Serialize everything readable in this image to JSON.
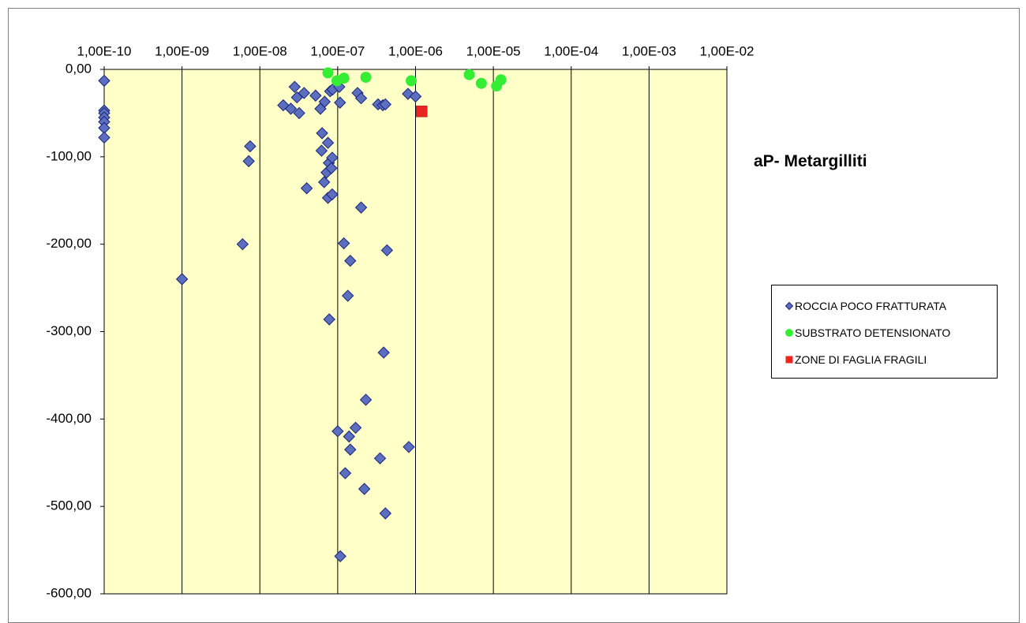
{
  "chart_data": {
    "type": "scatter",
    "title": "aP- Metargilliti",
    "xscale": "log",
    "x_axis_position": "top",
    "xlim": [
      1e-10,
      0.01
    ],
    "ylim": [
      -600,
      0
    ],
    "x_tick_labels": [
      "1,00E-10",
      "1,00E-09",
      "1,00E-08",
      "1,00E-07",
      "1,00E-06",
      "1,00E-05",
      "1,00E-04",
      "1,00E-03",
      "1,00E-02"
    ],
    "y_tick_labels": [
      "0,00",
      "-100,00",
      "-200,00",
      "-300,00",
      "-400,00",
      "-500,00",
      "-600,00"
    ],
    "y_ticks": [
      0,
      -100,
      -200,
      -300,
      -400,
      -500,
      -600
    ],
    "grid": "vertical",
    "legend_position": "right",
    "colors": {
      "plot_background": "#ffffc8",
      "grid": "#000000",
      "frame": "#7f7f7f"
    },
    "series": [
      {
        "name": "ROCCIA POCO FRATTURATA",
        "marker": "diamond",
        "color": "#5b6fbe",
        "edge": "#1a237e",
        "points": [
          [
            1e-10,
            -13
          ],
          [
            1e-10,
            -47
          ],
          [
            1e-10,
            -50
          ],
          [
            1e-10,
            -55
          ],
          [
            1e-10,
            -60
          ],
          [
            1e-10,
            -67
          ],
          [
            1e-10,
            -78
          ],
          [
            1e-09,
            -240
          ],
          [
            6e-09,
            -200
          ],
          [
            7.5e-09,
            -88
          ],
          [
            7.2e-09,
            -105
          ],
          [
            2e-08,
            -41
          ],
          [
            2.5e-08,
            -45
          ],
          [
            2.8e-08,
            -20
          ],
          [
            3e-08,
            -32
          ],
          [
            3.2e-08,
            -50
          ],
          [
            3.7e-08,
            -27
          ],
          [
            4e-08,
            -136
          ],
          [
            5.2e-08,
            -30
          ],
          [
            6e-08,
            -45
          ],
          [
            6.3e-08,
            -73
          ],
          [
            6.2e-08,
            -93
          ],
          [
            6.8e-08,
            -37
          ],
          [
            6.7e-08,
            -129
          ],
          [
            7.2e-08,
            -118
          ],
          [
            7.5e-08,
            -147
          ],
          [
            7.5e-08,
            -84
          ],
          [
            7.7e-08,
            -107
          ],
          [
            7.8e-08,
            -286
          ],
          [
            8e-08,
            -25
          ],
          [
            8.3e-08,
            -113
          ],
          [
            8.6e-08,
            -23
          ],
          [
            8.5e-08,
            -101
          ],
          [
            8.5e-08,
            -143
          ],
          [
            1e-07,
            -414
          ],
          [
            1.05e-07,
            -20
          ],
          [
            1.07e-07,
            -38
          ],
          [
            1.08e-07,
            -557
          ],
          [
            1.2e-07,
            -199
          ],
          [
            1.25e-07,
            -462
          ],
          [
            1.35e-07,
            -259
          ],
          [
            1.4e-07,
            -420
          ],
          [
            1.45e-07,
            -219
          ],
          [
            1.45e-07,
            -435
          ],
          [
            1.7e-07,
            -410
          ],
          [
            1.8e-07,
            -27
          ],
          [
            2e-07,
            -33
          ],
          [
            2e-07,
            -158
          ],
          [
            2.2e-07,
            -480
          ],
          [
            2.3e-07,
            -378
          ],
          [
            3.3e-07,
            -40
          ],
          [
            3.5e-07,
            -445
          ],
          [
            3.8e-07,
            -41
          ],
          [
            3.9e-07,
            -324
          ],
          [
            4.1e-07,
            -40
          ],
          [
            4.1e-07,
            -508
          ],
          [
            4.3e-07,
            -207
          ],
          [
            8e-07,
            -28
          ],
          [
            8.2e-07,
            -432
          ],
          [
            1e-06,
            -31
          ]
        ]
      },
      {
        "name": "SUBSTRATO DETENSIONATO",
        "marker": "circle",
        "color": "#33ee33",
        "points": [
          [
            7.5e-08,
            -4
          ],
          [
            9.8e-08,
            -13
          ],
          [
            1.2e-07,
            -10
          ],
          [
            2.3e-07,
            -9
          ],
          [
            8.8e-07,
            -13
          ],
          [
            4.9e-06,
            -6
          ],
          [
            7e-06,
            -16
          ],
          [
            1.1e-05,
            -19
          ],
          [
            1.25e-05,
            -12
          ]
        ]
      },
      {
        "name": "ZONE DI FAGLIA FRAGILI",
        "marker": "square",
        "color": "#e8251f",
        "points": [
          [
            1.2e-06,
            -48
          ]
        ]
      }
    ]
  }
}
